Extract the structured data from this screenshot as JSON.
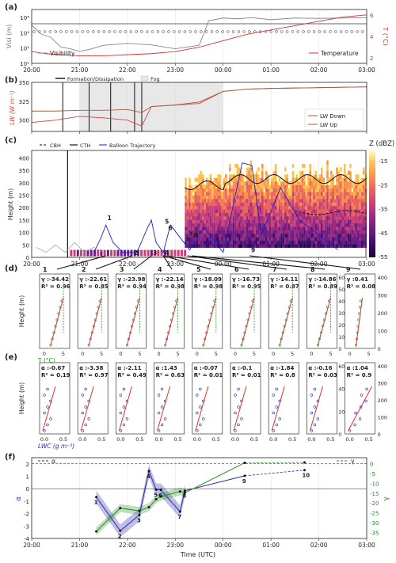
{
  "panel_labels": [
    "(a)",
    "(b)",
    "(c)",
    "(d)",
    "(e)",
    "(f)"
  ],
  "time_ticks": [
    "20:00",
    "21:00",
    "22:00",
    "23:00",
    "00:00",
    "01:00",
    "02:00",
    "03:00"
  ],
  "time_axis_label": "Time (UTC)",
  "colors": {
    "visibility": "#888888",
    "temperature": "#e03030",
    "lw_down": "#e04040",
    "lw_up": "#a0603a",
    "fog": "#e8e8e8",
    "balloon": "#2020c0",
    "gamma": "#2a8a2a",
    "alpha": "#2a2aaa"
  },
  "chart_data": [
    {
      "id": "a",
      "type": "line",
      "ylabel_left": "Visi (m)",
      "ylabel_right": "T (°C)",
      "yticks_left": [
        "10¹",
        "10²",
        "10³",
        "10⁴"
      ],
      "yticks_right": [
        "2",
        "4",
        "6"
      ],
      "legend": [
        "Visibility",
        "Temperature"
      ],
      "series": [
        {
          "name": "Visibility",
          "x": [
            0,
            0.2,
            0.4,
            0.6,
            0.8,
            1.0,
            1.2,
            1.5,
            2.0,
            2.5,
            3.0,
            3.5,
            3.7,
            4.0,
            4.3,
            4.6,
            5.0,
            5.5,
            6.0,
            6.5,
            7.0
          ],
          "y": [
            3000,
            800,
            500,
            120,
            90,
            60,
            80,
            150,
            200,
            160,
            90,
            150,
            6000,
            9000,
            8000,
            9500,
            7000,
            9000,
            8500,
            9000,
            9500
          ]
        },
        {
          "name": "Temperature",
          "x": [
            0,
            0.3,
            0.6,
            1.0,
            1.5,
            2.0,
            2.5,
            3.0,
            3.5,
            4.0,
            4.5,
            5.0,
            5.5,
            6.0,
            6.5,
            7.0
          ],
          "y": [
            2.6,
            2.4,
            2.3,
            2.2,
            2.2,
            2.3,
            2.4,
            2.6,
            3.0,
            3.6,
            4.2,
            4.6,
            5.0,
            5.4,
            5.8,
            6.0
          ]
        }
      ]
    },
    {
      "id": "b",
      "type": "line",
      "ylabel": "LW (W m⁻²)",
      "yticks": [
        "300",
        "325",
        "350"
      ],
      "legend": [
        "Formation/Dissipation",
        "Fog",
        "LW Down",
        "LW Up"
      ],
      "fog_span": [
        1.0,
        4.0
      ],
      "formation_lines": [
        0.65,
        1.2,
        1.65,
        2.15,
        2.3
      ],
      "series": [
        {
          "name": "LW Down",
          "x": [
            0,
            0.5,
            1.0,
            1.5,
            2.0,
            2.3,
            2.5,
            3.0,
            3.5,
            4.0,
            4.5,
            5.0,
            6.0,
            7.0
          ],
          "y": [
            297,
            300,
            305,
            303,
            300,
            292,
            318,
            320,
            322,
            338,
            341,
            342,
            343,
            344
          ]
        },
        {
          "name": "LW Up",
          "x": [
            0,
            0.5,
            1.0,
            1.5,
            2.0,
            2.3,
            2.5,
            3.0,
            3.5,
            4.0,
            4.5,
            5.0,
            6.0,
            7.0
          ],
          "y": [
            312,
            312,
            313,
            313,
            314,
            310,
            318,
            320,
            324,
            338,
            341,
            342,
            343,
            344
          ]
        }
      ]
    },
    {
      "id": "c",
      "type": "heatmap",
      "ylabel": "Height (m)",
      "yticks": [
        "0",
        "50",
        "100",
        "150",
        "200",
        "250",
        "300",
        "350",
        "400"
      ],
      "colorbar_title": "Z (dBZ)",
      "colorbar_ticks": [
        "-15",
        "-25",
        "-35",
        "-45",
        "-55"
      ],
      "legend": [
        "CBH",
        "CTH",
        "Balloon Trajectory"
      ],
      "profile_labels": [
        "1",
        "2",
        "3",
        "4",
        "5",
        "6",
        "7",
        "8",
        "9"
      ],
      "profile_times": [
        1.55,
        2.1,
        2.5,
        2.75,
        2.75,
        2.82,
        3.25,
        3.35,
        4.55
      ],
      "bottom_labels": [
        "1",
        "2",
        "3",
        "4",
        "5",
        "6",
        "7",
        "8",
        "9"
      ]
    },
    {
      "id": "d",
      "type": "scatter",
      "ylabel": "Height (m)",
      "xlabel": "T (°C)",
      "yticks_right": [
        "0",
        "10",
        "20",
        "30",
        "40",
        "50",
        "60"
      ],
      "yticks_right9": [
        "0",
        "100",
        "200",
        "300",
        "400"
      ],
      "panels": [
        {
          "label": "γ :-34.42",
          "r2": "R² = 0.96"
        },
        {
          "label": "γ :-22.61",
          "r2": "R² = 0.85"
        },
        {
          "label": "γ :-23.98",
          "r2": "R² = 0.94"
        },
        {
          "label": "γ :-22.14",
          "r2": "R² = 0.98"
        },
        {
          "label": "γ :-18.09",
          "r2": "R² = 0.98"
        },
        {
          "label": "γ :-16.73",
          "r2": "R² = 0.95"
        },
        {
          "label": "γ :-14.11",
          "r2": "R² = 0.87"
        },
        {
          "label": "γ :-14.86",
          "r2": "R² = 0.89"
        },
        {
          "label": "γ :0.41",
          "r2": "R² = 0.08"
        }
      ],
      "xticks": [
        "0",
        "5"
      ]
    },
    {
      "id": "e",
      "type": "scatter",
      "ylabel": "Height (m)",
      "xlabel": "LWC (g m⁻³)",
      "yticks_right": [
        "0",
        "20",
        "40",
        "60"
      ],
      "yticks_right9": [
        "0",
        "100",
        "200",
        "300",
        "400"
      ],
      "panels": [
        {
          "label": "α :-0.67",
          "r2": "R² = 0.19"
        },
        {
          "label": "α :-3.38",
          "r2": "R² = 0.97"
        },
        {
          "label": "α :-2.11",
          "r2": "R² = 0.49"
        },
        {
          "label": "α :1.43",
          "r2": "R² = 0.63"
        },
        {
          "label": "α :-0.07",
          "r2": "R² = 0.01"
        },
        {
          "label": "α :-0.1",
          "r2": "R² = 0.01"
        },
        {
          "label": "α :-1.84",
          "r2": "R² = 0.8"
        },
        {
          "label": "α :-0.16",
          "r2": "R² = 0.03"
        },
        {
          "label": "α :1.04",
          "r2": "R² = 0.9"
        }
      ],
      "xticks": [
        "0.0",
        "0.5"
      ]
    },
    {
      "id": "f",
      "type": "line",
      "ylabel_left": "α",
      "ylabel_right": "γ",
      "yticks_left": [
        "-4",
        "-3",
        "-2",
        "-1",
        "0",
        "1",
        "2"
      ],
      "yticks_right": [
        "-35",
        "-30",
        "-25",
        "-20",
        "-15",
        "-10",
        "-5",
        "0"
      ],
      "legend": [
        "α",
        "γ"
      ],
      "series": [
        {
          "name": "α",
          "x": [
            1.35,
            1.85,
            2.25,
            2.45,
            2.6,
            2.7,
            3.1,
            3.2,
            4.45,
            5.7
          ],
          "y": [
            -0.67,
            -3.38,
            -2.11,
            1.43,
            -0.07,
            -0.1,
            -1.84,
            -0.16,
            1.04,
            1.5
          ],
          "labels": [
            "1",
            "2",
            "3",
            "4",
            "5",
            "6",
            "7",
            "8",
            "9",
            "10"
          ]
        },
        {
          "name": "γ",
          "x": [
            1.35,
            1.85,
            2.25,
            2.45,
            2.6,
            2.7,
            3.1,
            3.2,
            4.45,
            5.7
          ],
          "y": [
            -34.42,
            -22.61,
            -23.98,
            -22.14,
            -18.09,
            -16.73,
            -14.11,
            -14.86,
            0.41,
            0.6
          ]
        }
      ]
    }
  ]
}
